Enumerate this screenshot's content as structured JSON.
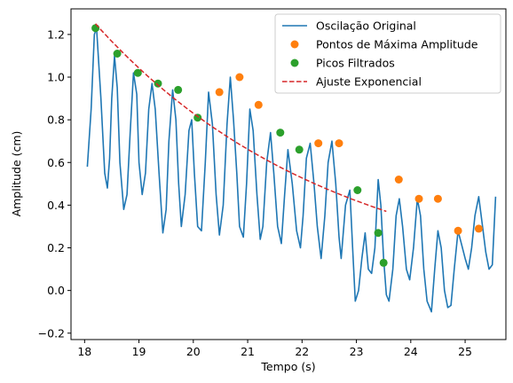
{
  "chart_data": {
    "type": "line",
    "title": "",
    "xlabel": "Tempo (s)",
    "ylabel": "Amplitude (cm)",
    "xlim": [
      17.75,
      25.75
    ],
    "ylim": [
      -0.23,
      1.32
    ],
    "xticks": [
      18,
      19,
      20,
      21,
      22,
      23,
      24,
      25
    ],
    "yticks": [
      -0.2,
      0.0,
      0.2,
      0.4,
      0.6,
      0.8,
      1.0,
      1.2
    ],
    "xtick_labels": [
      "18",
      "19",
      "20",
      "21",
      "22",
      "23",
      "24",
      "25"
    ],
    "ytick_labels": [
      "−0.2",
      "0.0",
      "0.2",
      "0.4",
      "0.6",
      "0.8",
      "1.0",
      "1.2"
    ],
    "grid": false,
    "legend_position": "top-right",
    "series": [
      {
        "name": "Oscilação Original",
        "style": "line",
        "color": "#1f77b4",
        "x": [
          18.05,
          18.12,
          18.18,
          18.22,
          18.3,
          18.37,
          18.42,
          18.46,
          18.5,
          18.55,
          18.6,
          18.65,
          18.72,
          18.78,
          18.84,
          18.9,
          18.96,
          19.0,
          19.06,
          19.12,
          19.18,
          19.24,
          19.3,
          19.37,
          19.44,
          19.5,
          19.55,
          19.62,
          19.68,
          19.73,
          19.78,
          19.85,
          19.92,
          19.97,
          20.02,
          20.08,
          20.15,
          20.22,
          20.28,
          20.35,
          20.42,
          20.48,
          20.55,
          20.62,
          20.68,
          20.74,
          20.8,
          20.85,
          20.92,
          20.98,
          21.04,
          21.1,
          21.17,
          21.23,
          21.28,
          21.35,
          21.42,
          21.48,
          21.55,
          21.62,
          21.68,
          21.74,
          21.82,
          21.9,
          21.97,
          22.02,
          22.08,
          22.15,
          22.22,
          22.28,
          22.35,
          22.42,
          22.48,
          22.55,
          22.62,
          22.68,
          22.72,
          22.8,
          22.88,
          22.93,
          22.98,
          23.04,
          23.1,
          23.16,
          23.22,
          23.28,
          23.34,
          23.4,
          23.45,
          23.5,
          23.55,
          23.6,
          23.67,
          23.73,
          23.79,
          23.85,
          23.92,
          23.98,
          24.05,
          24.12,
          24.18,
          24.24,
          24.3,
          24.38,
          24.44,
          24.5,
          24.56,
          24.62,
          24.68,
          24.74,
          24.8,
          24.87,
          24.93,
          25.0,
          25.06,
          25.12,
          25.18,
          25.25,
          25.32,
          25.38,
          25.44,
          25.5,
          25.56
        ],
        "y": [
          0.58,
          0.85,
          1.2,
          1.23,
          0.9,
          0.55,
          0.48,
          0.62,
          0.9,
          1.1,
          0.95,
          0.6,
          0.38,
          0.45,
          0.75,
          1.02,
          0.92,
          0.6,
          0.45,
          0.55,
          0.85,
          0.97,
          0.85,
          0.55,
          0.27,
          0.38,
          0.7,
          0.94,
          0.8,
          0.5,
          0.3,
          0.45,
          0.75,
          0.8,
          0.55,
          0.3,
          0.28,
          0.6,
          0.93,
          0.78,
          0.45,
          0.26,
          0.4,
          0.78,
          1.0,
          0.8,
          0.55,
          0.3,
          0.25,
          0.5,
          0.85,
          0.75,
          0.45,
          0.24,
          0.3,
          0.6,
          0.74,
          0.55,
          0.3,
          0.22,
          0.45,
          0.66,
          0.5,
          0.28,
          0.2,
          0.35,
          0.62,
          0.69,
          0.5,
          0.3,
          0.15,
          0.35,
          0.6,
          0.7,
          0.5,
          0.25,
          0.15,
          0.4,
          0.47,
          0.2,
          -0.05,
          0.0,
          0.15,
          0.27,
          0.1,
          0.08,
          0.2,
          0.52,
          0.4,
          0.15,
          -0.02,
          -0.05,
          0.1,
          0.35,
          0.43,
          0.3,
          0.1,
          0.05,
          0.2,
          0.43,
          0.35,
          0.1,
          -0.05,
          -0.1,
          0.1,
          0.28,
          0.2,
          0.0,
          -0.08,
          -0.07,
          0.1,
          0.28,
          0.22,
          0.15,
          0.1,
          0.2,
          0.35,
          0.44,
          0.3,
          0.18,
          0.1,
          0.12,
          0.44
        ]
      },
      {
        "name": "Pontos de Máxima Amplitude",
        "style": "markers",
        "color": "#ff7f0e",
        "x": [
          20.48,
          20.85,
          21.2,
          22.3,
          22.68,
          23.78,
          24.15,
          24.5,
          24.87,
          25.25
        ],
        "y": [
          0.93,
          1.0,
          0.87,
          0.69,
          0.69,
          0.52,
          0.43,
          0.43,
          0.28,
          0.29
        ]
      },
      {
        "name": "Picos Filtrados",
        "style": "markers",
        "color": "#2ca02c",
        "x": [
          18.2,
          18.6,
          18.98,
          19.35,
          19.72,
          20.08,
          21.6,
          21.95,
          23.02,
          23.4,
          23.5
        ],
        "y": [
          1.23,
          1.11,
          1.02,
          0.97,
          0.94,
          0.81,
          0.74,
          0.66,
          0.47,
          0.27,
          0.13
        ]
      },
      {
        "name": "Ajuste Exponencial",
        "style": "dashed",
        "color": "#d62728",
        "fit": {
          "a": 1.25,
          "b": -0.227,
          "x0": 18.2,
          "x_start": 18.2,
          "x_end": 23.55
        }
      }
    ]
  }
}
